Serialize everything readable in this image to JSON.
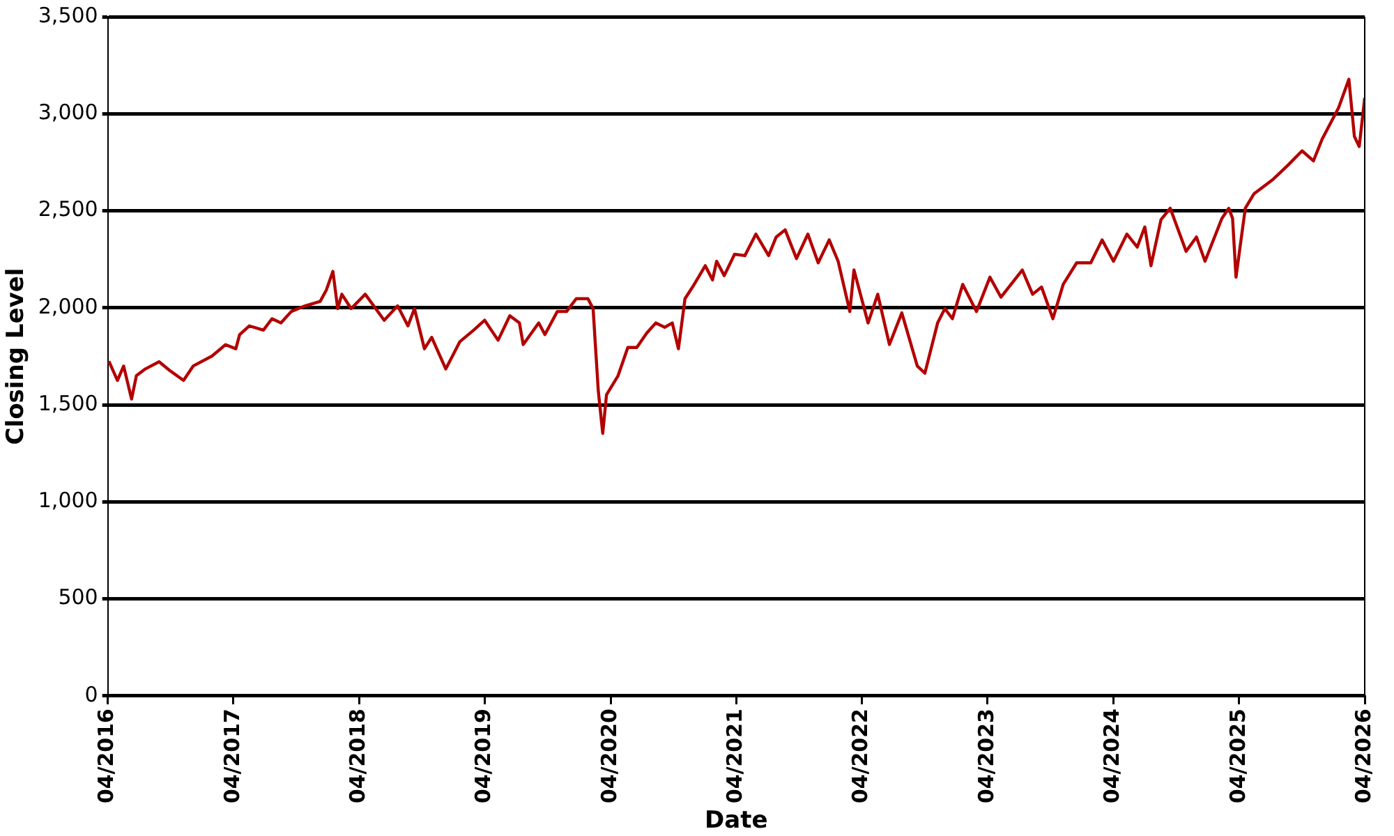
{
  "chart_data": {
    "type": "line",
    "xlabel": "Date",
    "ylabel": "Closing Level",
    "grid": "y",
    "legend": false,
    "marker": "none",
    "line_style": "solid",
    "xlim": [
      "2016-04-01",
      "2026-04-01"
    ],
    "xticks": [
      {
        "value": "2016-04-01",
        "label": "04/2016"
      },
      {
        "value": "2017-04-01",
        "label": "04/2017"
      },
      {
        "value": "2018-04-01",
        "label": "04/2018"
      },
      {
        "value": "2019-04-01",
        "label": "04/2019"
      },
      {
        "value": "2020-04-01",
        "label": "04/2020"
      },
      {
        "value": "2021-04-01",
        "label": "04/2021"
      },
      {
        "value": "2022-04-01",
        "label": "04/2022"
      },
      {
        "value": "2023-04-01",
        "label": "04/2023"
      },
      {
        "value": "2024-04-01",
        "label": "04/2024"
      },
      {
        "value": "2025-04-01",
        "label": "04/2025"
      },
      {
        "value": "2026-04-01",
        "label": "04/2026"
      }
    ],
    "ylim": [
      0,
      3500
    ],
    "yticks": [
      {
        "value": 0,
        "label": "0"
      },
      {
        "value": 500,
        "label": "500"
      },
      {
        "value": 1000,
        "label": "1,000"
      },
      {
        "value": 1500,
        "label": "1,500"
      },
      {
        "value": 2000,
        "label": "2,000"
      },
      {
        "value": 2500,
        "label": "2,500"
      },
      {
        "value": 3000,
        "label": "3,000"
      },
      {
        "value": 3500,
        "label": "3,500"
      }
    ],
    "series": [
      {
        "color": "#b30000",
        "x": [
          "2016-04-04",
          "2016-04-29",
          "2016-05-17",
          "2016-06-09",
          "2016-06-23",
          "2016-07-19",
          "2016-08-28",
          "2016-09-27",
          "2016-11-07",
          "2016-12-05",
          "2017-01-29",
          "2017-03-09",
          "2017-04-08",
          "2017-04-19",
          "2017-05-17",
          "2017-06-27",
          "2017-07-22",
          "2017-08-17",
          "2017-09-16",
          "2017-10-26",
          "2017-12-09",
          "2017-12-27",
          "2018-01-15",
          "2018-01-29",
          "2018-02-10",
          "2018-03-09",
          "2018-04-19",
          "2018-06-13",
          "2018-07-22",
          "2018-08-21",
          "2018-09-09",
          "2018-10-08",
          "2018-10-29",
          "2018-12-09",
          "2019-01-19",
          "2019-02-28",
          "2019-04-01",
          "2019-05-10",
          "2019-06-13",
          "2019-07-11",
          "2019-07-22",
          "2019-09-05",
          "2019-09-23",
          "2019-10-29",
          "2019-11-25",
          "2019-12-23",
          "2020-01-26",
          "2020-02-10",
          "2020-02-25",
          "2020-03-09",
          "2020-03-20",
          "2020-04-22",
          "2020-05-21",
          "2020-06-16",
          "2020-07-15",
          "2020-08-10",
          "2020-09-05",
          "2020-09-27",
          "2020-10-15",
          "2020-11-03",
          "2020-11-25",
          "2021-01-01",
          "2021-01-22",
          "2021-02-03",
          "2021-02-25",
          "2021-03-27",
          "2021-04-26",
          "2021-05-28",
          "2021-07-04",
          "2021-07-26",
          "2021-08-21",
          "2021-09-23",
          "2021-10-26",
          "2021-11-25",
          "2021-12-27",
          "2022-01-22",
          "2022-02-25",
          "2022-03-09",
          "2022-04-19",
          "2022-05-17",
          "2022-06-20",
          "2022-07-26",
          "2022-09-09",
          "2022-10-01",
          "2022-11-07",
          "2022-11-28",
          "2022-12-20",
          "2023-01-19",
          "2023-02-28",
          "2023-04-08",
          "2023-05-10",
          "2023-07-11",
          "2023-08-10",
          "2023-09-05",
          "2023-10-08",
          "2023-11-07",
          "2023-12-16",
          "2024-01-26",
          "2024-02-28",
          "2024-04-01",
          "2024-05-10",
          "2024-06-09",
          "2024-07-01",
          "2024-07-19",
          "2024-08-17",
          "2024-09-13",
          "2024-10-29",
          "2024-11-28",
          "2024-12-23",
          "2025-02-10",
          "2025-03-02",
          "2025-03-13",
          "2025-03-23",
          "2025-04-19",
          "2025-05-14",
          "2025-07-08",
          "2025-08-21",
          "2025-10-01",
          "2025-11-03",
          "2025-11-28",
          "2026-01-15",
          "2026-02-14",
          "2026-03-02",
          "2026-03-16",
          "2026-04-01"
        ],
        "values": [
          1725,
          1626,
          1700,
          1530,
          1650,
          1685,
          1722,
          1678,
          1626,
          1700,
          1752,
          1810,
          1789,
          1862,
          1907,
          1885,
          1944,
          1922,
          1981,
          2010,
          2033,
          2092,
          2188,
          1996,
          2070,
          1996,
          2070,
          1936,
          2010,
          1907,
          1996,
          1789,
          1848,
          1685,
          1826,
          1885,
          1936,
          1833,
          1959,
          1922,
          1811,
          1922,
          1862,
          1981,
          1981,
          2047,
          2047,
          1996,
          1574,
          1353,
          1552,
          1648,
          1796,
          1796,
          1870,
          1922,
          1900,
          1922,
          1789,
          2047,
          2107,
          2217,
          2144,
          2240,
          2166,
          2276,
          2269,
          2380,
          2269,
          2365,
          2402,
          2254,
          2380,
          2232,
          2350,
          2240,
          1981,
          2195,
          1922,
          2070,
          1811,
          1974,
          1700,
          1663,
          1922,
          1996,
          1944,
          2121,
          1981,
          2158,
          2055,
          2195,
          2070,
          2107,
          1944,
          2121,
          2232,
          2232,
          2350,
          2240,
          2380,
          2313,
          2417,
          2217,
          2454,
          2513,
          2291,
          2365,
          2240,
          2461,
          2513,
          2461,
          2158,
          2513,
          2587,
          2661,
          2735,
          2809,
          2757,
          2868,
          3031,
          3178,
          2883,
          2831,
          3082
        ]
      }
    ]
  }
}
